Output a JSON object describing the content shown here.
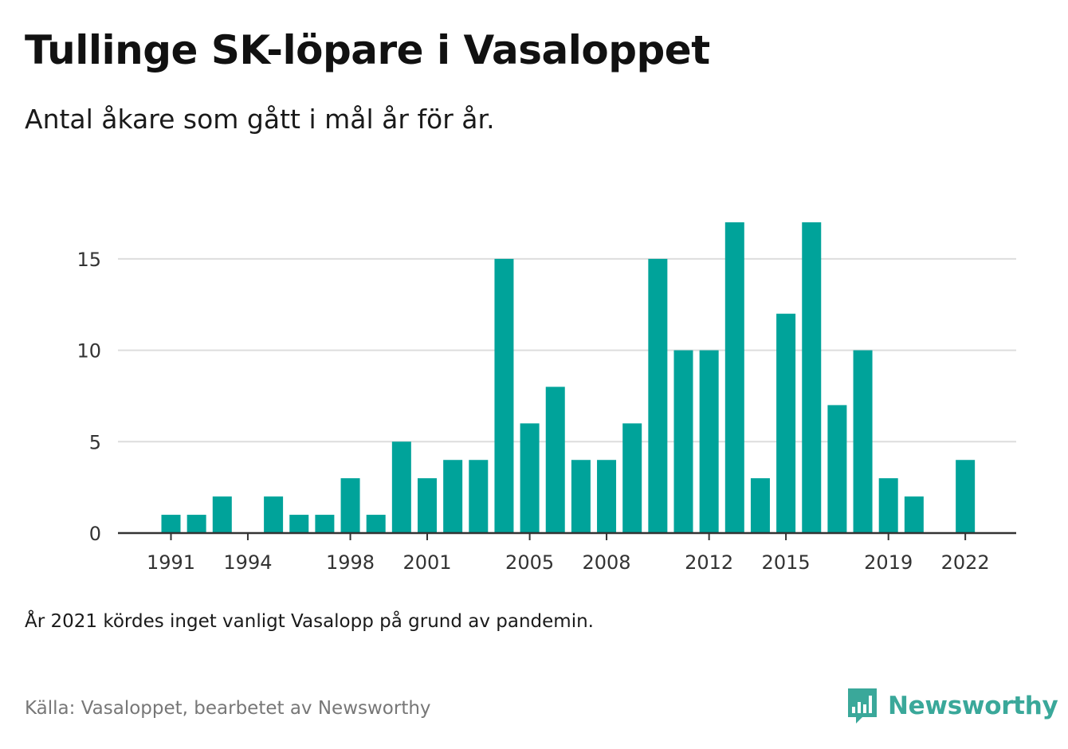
{
  "header": {
    "title": "Tullinge SK-löpare i Vasaloppet",
    "subtitle": "Antal åkare som gått i mål år för år."
  },
  "footer": {
    "note": "År 2021 kördes inget vanligt Vasalopp på grund av pandemin.",
    "source": "Källa: Vasaloppet, bearbetet av Newsworthy",
    "logo_text": "Newsworthy"
  },
  "colors": {
    "bar": "#00a39a",
    "grid": "#dddddd",
    "axis": "#333333",
    "logo": "#3aa89a"
  },
  "chart_data": {
    "type": "bar",
    "x": [
      1991,
      1992,
      1993,
      1994,
      1995,
      1996,
      1997,
      1998,
      1999,
      2000,
      2001,
      2002,
      2003,
      2004,
      2005,
      2006,
      2007,
      2008,
      2009,
      2010,
      2011,
      2012,
      2013,
      2014,
      2015,
      2016,
      2017,
      2018,
      2019,
      2020,
      2021,
      2022
    ],
    "values": [
      1,
      1,
      2,
      0,
      2,
      1,
      1,
      3,
      1,
      5,
      3,
      4,
      4,
      15,
      6,
      8,
      4,
      4,
      6,
      15,
      10,
      10,
      17,
      3,
      12,
      17,
      7,
      10,
      3,
      2,
      0,
      4
    ],
    "x_ticks": [
      "1991",
      "1994",
      "1998",
      "2001",
      "2005",
      "2008",
      "2012",
      "2015",
      "2019",
      "2022"
    ],
    "y_ticks": [
      "0",
      "5",
      "10",
      "15"
    ],
    "ylim": [
      0,
      17
    ],
    "grid": true,
    "legend": false
  }
}
